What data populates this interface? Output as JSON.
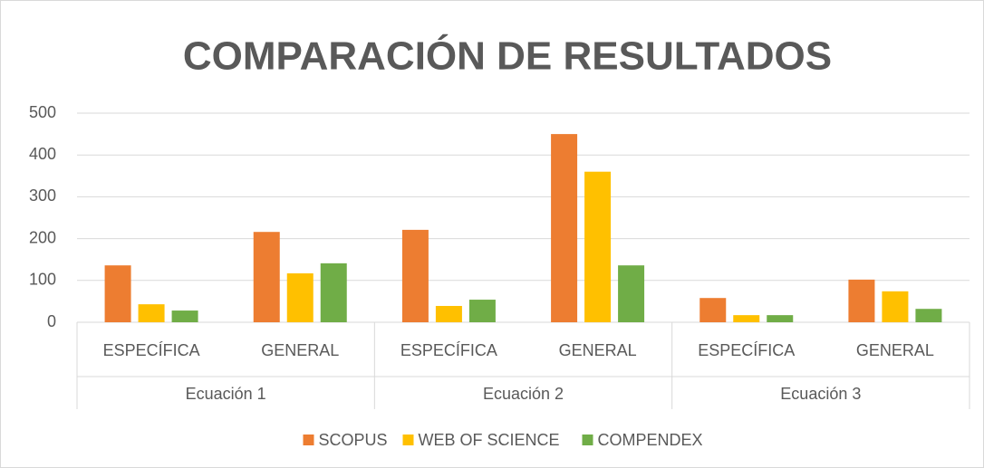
{
  "chart_data": {
    "type": "bar",
    "title": "COMPARACIÓN DE RESULTADOS",
    "categories": [
      "ESPECÍFICA",
      "GENERAL",
      "ESPECÍFICA",
      "GENERAL",
      "ESPECÍFICA",
      "GENERAL"
    ],
    "groups": [
      "Ecuación 1",
      "Ecuación 2",
      "Ecuación 3"
    ],
    "series": [
      {
        "name": "SCOPUS",
        "color": "#ed7d31",
        "values": [
          136,
          216,
          221,
          450,
          58,
          102
        ]
      },
      {
        "name": "WEB OF SCIENCE",
        "color": "#ffc000",
        "values": [
          43,
          117,
          39,
          360,
          17,
          74
        ]
      },
      {
        "name": "COMPENDEX",
        "color": "#70ad47",
        "values": [
          28,
          141,
          54,
          136,
          17,
          32
        ]
      }
    ],
    "ylim": [
      0,
      500
    ],
    "yticks": [
      0,
      100,
      200,
      300,
      400,
      500
    ],
    "grid": true,
    "legend": "bottom"
  }
}
